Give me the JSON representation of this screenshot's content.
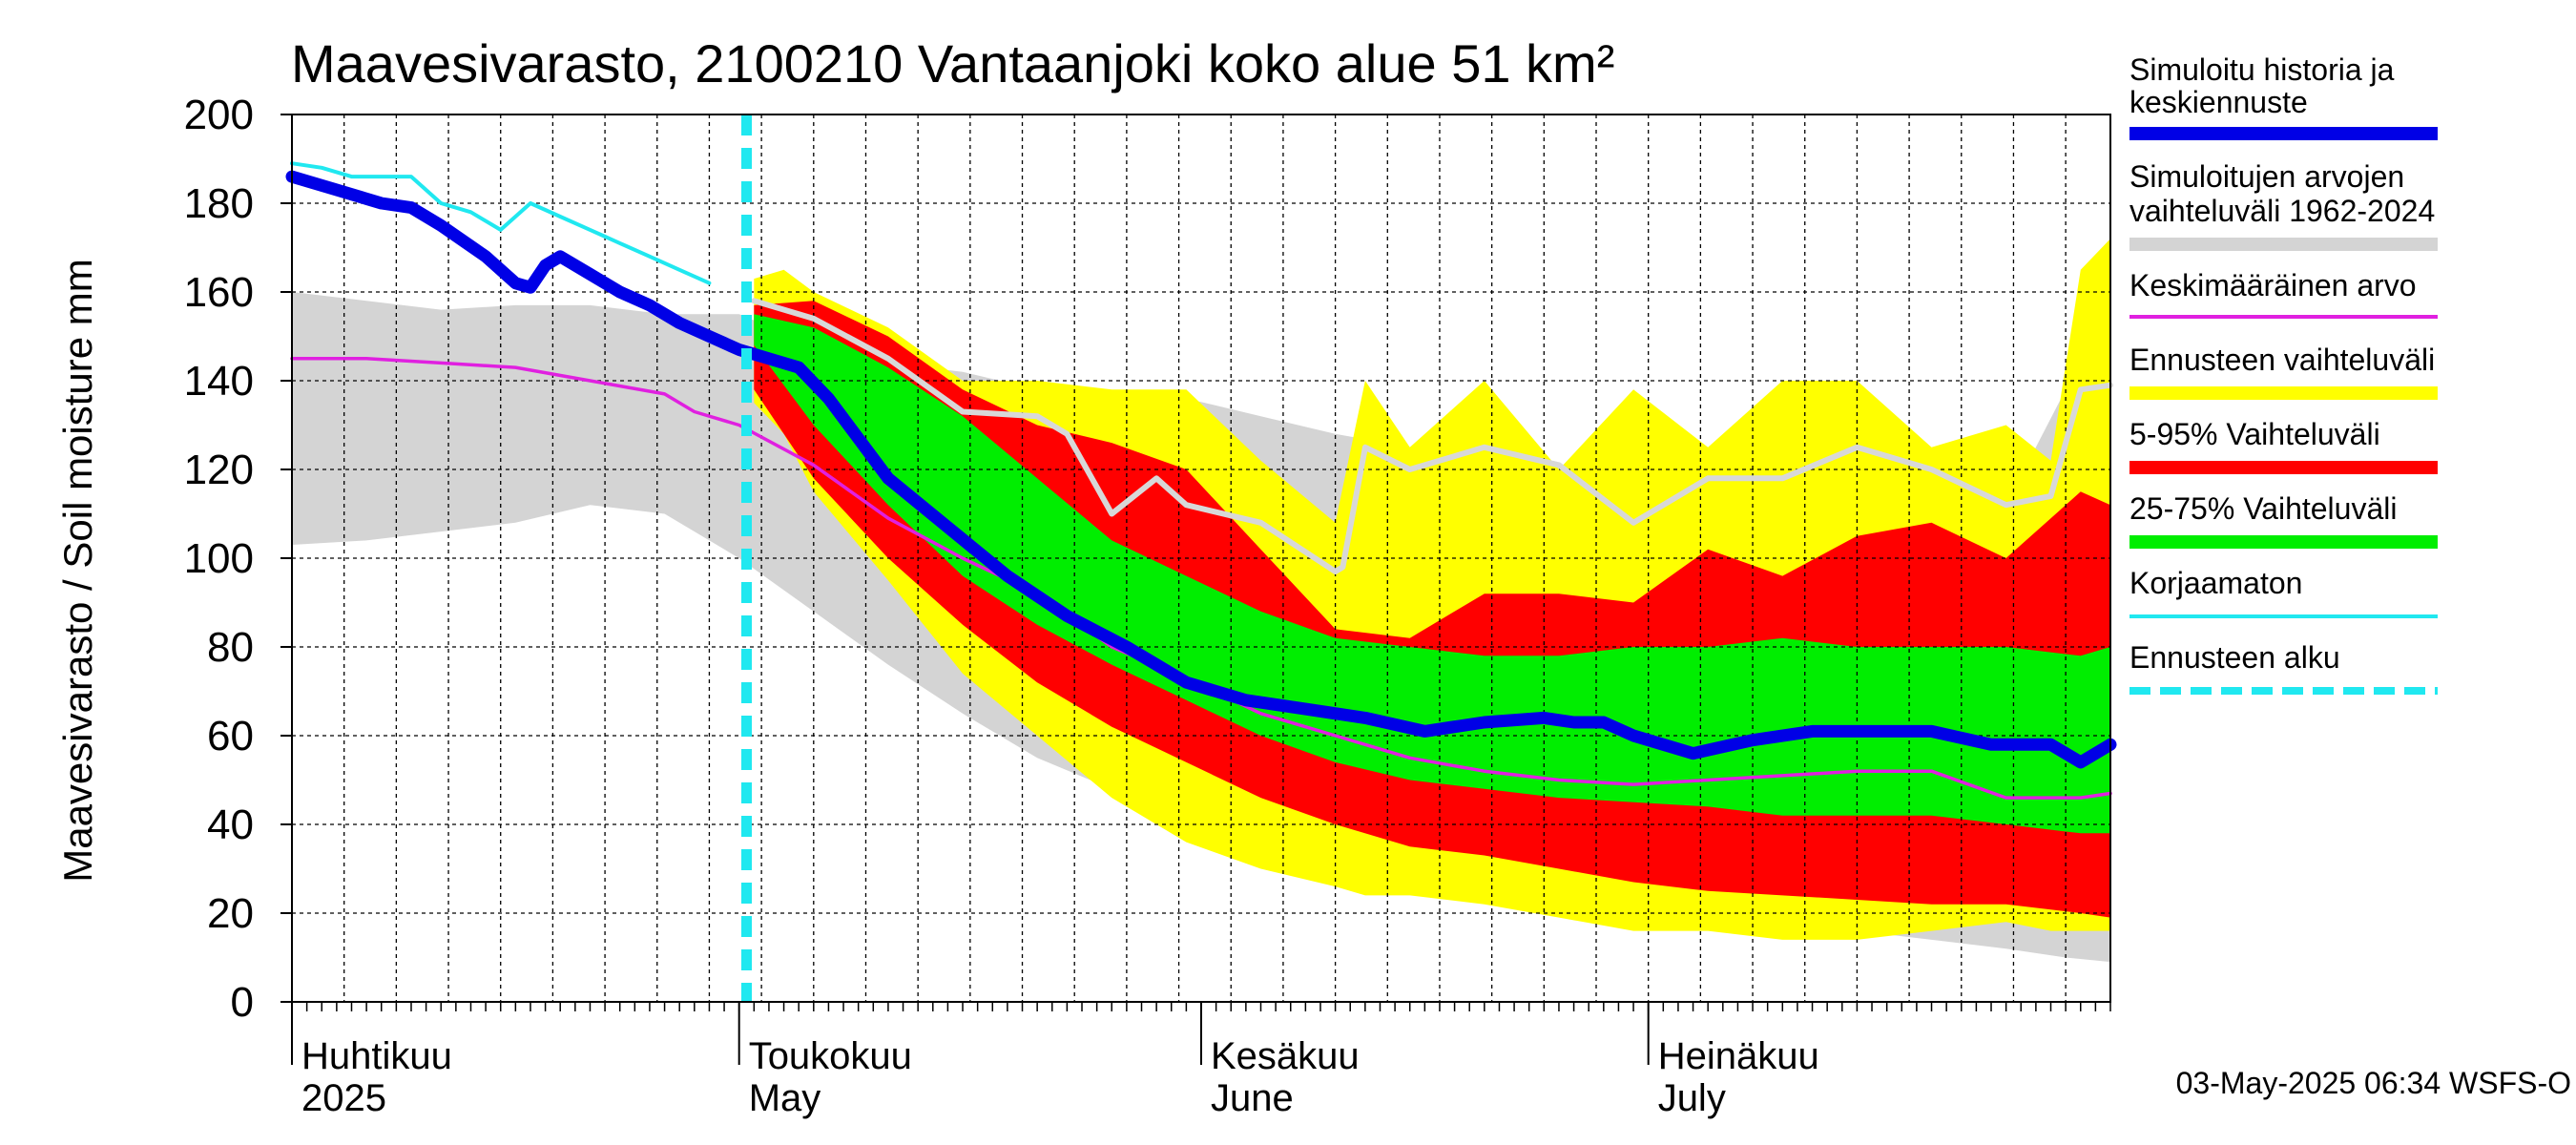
{
  "chart_data": {
    "type": "area",
    "title": "Maavesivarasto, 2100210 Vantaanjoki koko alue 51 km²",
    "ylabel": "Maavesivarasto / Soil moisture   mm",
    "xlabel": "",
    "ylim": [
      0,
      200
    ],
    "yticks": [
      0,
      20,
      40,
      60,
      80,
      100,
      120,
      140,
      160,
      180,
      200
    ],
    "xlim_days": [
      0,
      122
    ],
    "forecast_start_day": 30.5,
    "x_months": [
      {
        "fi": "Huhtikuu",
        "en": "2025",
        "day": 0
      },
      {
        "fi": "Toukokuu",
        "en": "May",
        "day": 30
      },
      {
        "fi": "Kesäkuu",
        "en": "June",
        "day": 61
      },
      {
        "fi": "Heinäkuu",
        "en": "July",
        "day": 91
      }
    ],
    "legend": [
      {
        "label": "Simuloitu historia ja keskiennuste",
        "color": "#0000e6"
      },
      {
        "label": "Simuloitujen arvojen vaihteluväli 1962-2024",
        "color": "#d4d4d4"
      },
      {
        "label": "Keskimääräinen arvo",
        "color": "#e020e0"
      },
      {
        "label": "Ennusteen vaihteluväli",
        "color": "#ffff00"
      },
      {
        "label": "5-95% Vaihteluväli",
        "color": "#ff0000"
      },
      {
        "label": "25-75% Vaihteluväli",
        "color": "#00ee00"
      },
      {
        "label": "Korjaamaton",
        "color": "#20e8f0"
      },
      {
        "label": "Ennusteen alku",
        "color": "#20e8f0"
      }
    ],
    "footer": "03-May-2025 06:34 WSFS-O",
    "series": [
      {
        "name": "Simuloitujen arvojen vaihteluväli 1962-2024",
        "kind": "band",
        "color": "#d4d4d4",
        "x": [
          0,
          5,
          10,
          15,
          20,
          25,
          30,
          35,
          40,
          45,
          50,
          55,
          60,
          65,
          70,
          75,
          80,
          85,
          90,
          95,
          100,
          105,
          110,
          115,
          119,
          122
        ],
        "lower": [
          103,
          104,
          106,
          108,
          112,
          110,
          100,
          88,
          76,
          65,
          55,
          48,
          43,
          38,
          34,
          32,
          29,
          26,
          24,
          21,
          17,
          16,
          14,
          12,
          10,
          9
        ],
        "upper": [
          160,
          158,
          156,
          157,
          157,
          155,
          155,
          148,
          144,
          142,
          138,
          136,
          136,
          132,
          128,
          125,
          124,
          121,
          123,
          120,
          118,
          110,
          114,
          112,
          138,
          140
        ]
      },
      {
        "name": "Ennusteen vaihteluväli",
        "kind": "band",
        "color": "#ffff00",
        "x": [
          31,
          33,
          35,
          40,
          45,
          50,
          55,
          60,
          65,
          70,
          72,
          75,
          80,
          85,
          90,
          95,
          100,
          105,
          110,
          115,
          118,
          120,
          122
        ],
        "lower": [
          135,
          128,
          115,
          95,
          74,
          60,
          46,
          36,
          30,
          26,
          24,
          24,
          22,
          19,
          16,
          16,
          14,
          14,
          16,
          18,
          16,
          16,
          16
        ],
        "upper": [
          163,
          165,
          160,
          152,
          140,
          140,
          138,
          138,
          122,
          108,
          140,
          125,
          140,
          120,
          138,
          125,
          140,
          140,
          125,
          130,
          122,
          165,
          172
        ]
      },
      {
        "name": "5-95% Vaihteluväli",
        "kind": "band",
        "color": "#ff0000",
        "x": [
          31,
          35,
          40,
          45,
          50,
          55,
          60,
          65,
          70,
          75,
          80,
          85,
          90,
          95,
          100,
          105,
          110,
          115,
          120,
          122
        ],
        "lower": [
          138,
          118,
          100,
          85,
          72,
          62,
          54,
          46,
          40,
          35,
          33,
          30,
          27,
          25,
          24,
          23,
          22,
          22,
          20,
          19
        ],
        "upper": [
          157,
          158,
          150,
          138,
          130,
          126,
          120,
          102,
          84,
          82,
          92,
          92,
          90,
          102,
          96,
          105,
          108,
          100,
          115,
          112
        ]
      },
      {
        "name": "25-75% Vaihteluväli",
        "kind": "band",
        "color": "#00ee00",
        "x": [
          31,
          35,
          40,
          45,
          50,
          55,
          60,
          65,
          70,
          75,
          80,
          85,
          90,
          95,
          100,
          105,
          110,
          115,
          120,
          122
        ],
        "lower": [
          148,
          130,
          112,
          96,
          85,
          76,
          68,
          60,
          54,
          50,
          48,
          46,
          45,
          44,
          42,
          42,
          42,
          40,
          38,
          38
        ],
        "upper": [
          155,
          152,
          143,
          132,
          118,
          104,
          96,
          88,
          82,
          80,
          78,
          78,
          80,
          80,
          82,
          80,
          80,
          80,
          78,
          80
        ]
      },
      {
        "name": "Keskimääräinen arvo",
        "kind": "line",
        "color": "#e020e0",
        "x": [
          0,
          5,
          10,
          15,
          20,
          25,
          27,
          30,
          35,
          40,
          45,
          50,
          55,
          60,
          65,
          70,
          75,
          80,
          85,
          90,
          95,
          100,
          105,
          110,
          115,
          120,
          122
        ],
        "y": [
          145,
          145,
          144,
          143,
          140,
          137,
          133,
          130,
          121,
          109,
          100,
          92,
          80,
          73,
          65,
          60,
          55,
          52,
          50,
          49,
          50,
          51,
          52,
          52,
          46,
          46,
          47
        ]
      },
      {
        "name": "Simuloitujen keskiarvo",
        "kind": "line",
        "color": "#d8d8d8",
        "x": [
          31,
          35,
          40,
          45,
          50,
          52,
          55,
          58,
          60,
          65,
          70,
          70.5,
          72,
          75,
          80,
          85,
          90,
          95,
          100,
          105,
          110,
          115,
          118,
          120,
          122
        ],
        "y": [
          158,
          154,
          145,
          133,
          132,
          128,
          110,
          118,
          112,
          108,
          97,
          98,
          125,
          120,
          125,
          121,
          108,
          118,
          118,
          125,
          120,
          112,
          114,
          138,
          139
        ]
      },
      {
        "name": "Korjaamaton",
        "kind": "line",
        "color": "#20e8f0",
        "x": [
          0,
          2,
          4,
          6,
          8,
          10,
          12,
          14,
          16,
          18,
          20,
          22,
          24,
          26,
          28
        ],
        "y": [
          189,
          188,
          186,
          186,
          186,
          180,
          178,
          174,
          180,
          177,
          174,
          171,
          168,
          165,
          162
        ]
      },
      {
        "name": "Simuloitu historia ja keskiennuste",
        "kind": "line",
        "color": "#0000e6",
        "x": [
          0,
          3,
          6,
          8,
          10,
          13,
          15,
          16,
          17,
          18,
          20,
          22,
          24,
          26,
          28,
          30,
          32,
          34,
          36,
          38,
          40,
          44,
          48,
          52,
          56,
          60,
          64,
          68,
          72,
          76,
          80,
          84,
          86,
          88,
          90,
          94,
          98,
          102,
          106,
          110,
          114,
          118,
          120,
          122
        ],
        "y": [
          186,
          183,
          180,
          179,
          175,
          168,
          162,
          161,
          166,
          168,
          164,
          160,
          157,
          153,
          150,
          147,
          145,
          143,
          136,
          127,
          118,
          107,
          96,
          87,
          80,
          72,
          68,
          66,
          64,
          61,
          63,
          64,
          63,
          63,
          60,
          56,
          59,
          61,
          61,
          61,
          58,
          58,
          54,
          58
        ]
      }
    ]
  }
}
